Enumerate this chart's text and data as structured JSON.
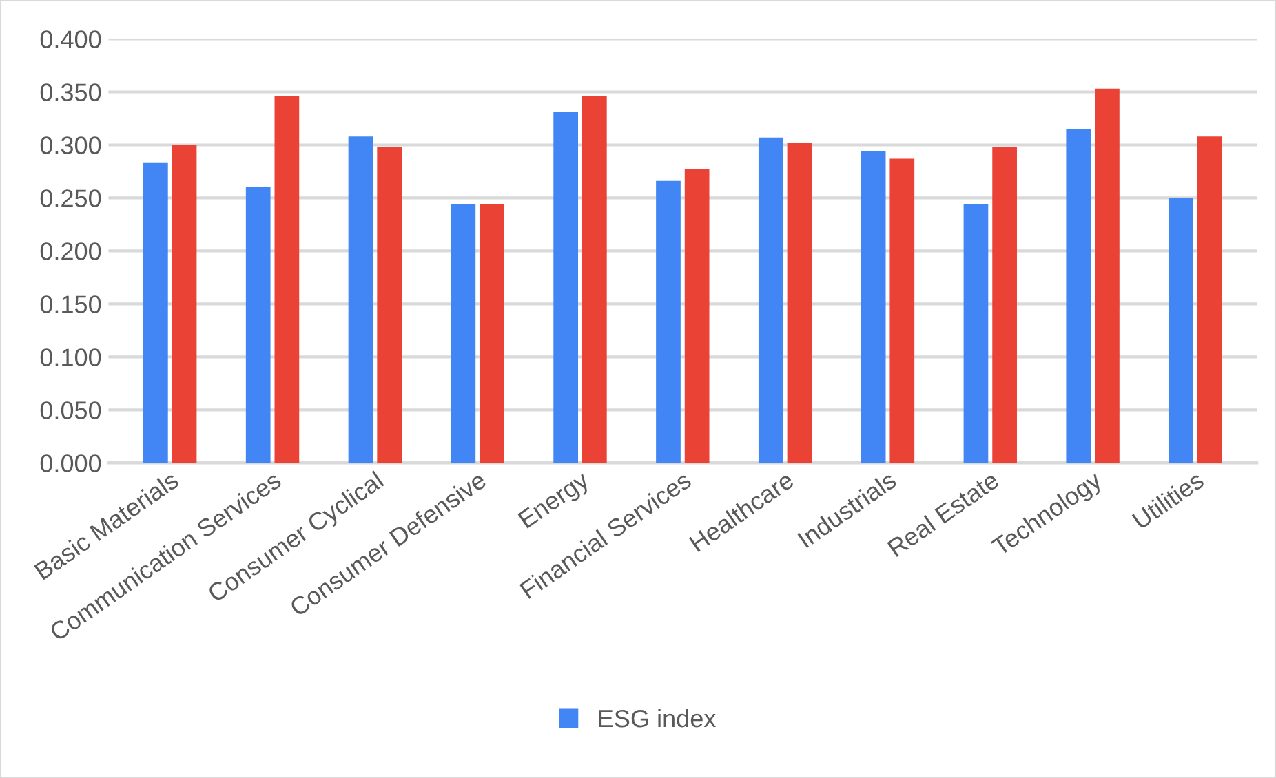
{
  "chart_data": {
    "type": "bar",
    "categories": [
      "Basic Materials",
      "Communication Services",
      "Consumer Cyclical",
      "Consumer Defensive",
      "Energy",
      "Financial Services",
      "Healthcare",
      "Industrials",
      "Real Estate",
      "Technology",
      "Utilities"
    ],
    "series": [
      {
        "name": "ESG index",
        "color": "#4285f4",
        "values": [
          0.283,
          0.26,
          0.308,
          0.244,
          0.331,
          0.266,
          0.307,
          0.294,
          0.244,
          0.315,
          0.25
        ]
      },
      {
        "color": "#ea4335",
        "values": [
          0.3,
          0.346,
          0.298,
          0.244,
          0.346,
          0.277,
          0.302,
          0.287,
          0.298,
          0.353,
          0.308
        ]
      }
    ],
    "ylim": [
      0,
      0.4
    ],
    "yticks": [
      {
        "value": 0,
        "label": "0.000"
      },
      {
        "value": 0.05,
        "label": "0.050"
      },
      {
        "value": 0.1,
        "label": "0.100"
      },
      {
        "value": 0.15,
        "label": "0.150"
      },
      {
        "value": 0.2,
        "label": "0.200"
      },
      {
        "value": 0.25,
        "label": "0.250"
      },
      {
        "value": 0.3,
        "label": "0.300"
      },
      {
        "value": 0.35,
        "label": "0.350"
      },
      {
        "value": 0.4,
        "label": "0.400"
      }
    ],
    "grid": "y",
    "legend": "bottom"
  }
}
